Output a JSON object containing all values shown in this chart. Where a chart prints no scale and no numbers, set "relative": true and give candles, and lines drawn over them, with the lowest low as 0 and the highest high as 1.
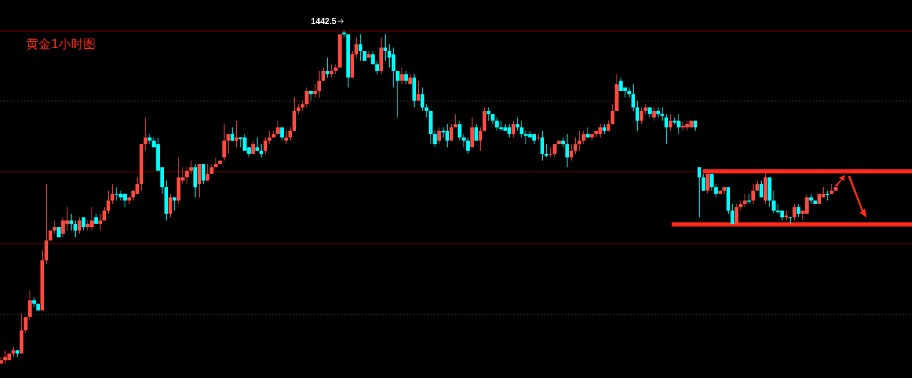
{
  "chart_data": {
    "type": "candlestick",
    "title": "黄金1小时图",
    "relative": true,
    "annotations": [
      "1442.5"
    ],
    "ref_lines": [
      {
        "axis": "y",
        "value": 1,
        "color": "#8a0000"
      },
      {
        "axis": "y",
        "value": 0.576,
        "color": "#8a0000"
      },
      {
        "axis": "y",
        "value": 0.36,
        "color": "#8a0000"
      },
      {
        "axis": "y",
        "value": 0.789,
        "color": "#444444",
        "line_style": "dotted"
      },
      {
        "axis": "y",
        "value": 0.147,
        "color": "#444444",
        "line_style": "dotted"
      },
      {
        "axis": "y",
        "value": 0.578,
        "color": "#ff2a1a"
      },
      {
        "axis": "y",
        "value": 0.418,
        "color": "#ff2a1a"
      }
    ],
    "categories": [
      null,
      null,
      null,
      null,
      null,
      null,
      null,
      null,
      null,
      null,
      null,
      null,
      null,
      null,
      null,
      null,
      null,
      null,
      null,
      null,
      null,
      null,
      null,
      null,
      null,
      null,
      null,
      null,
      null,
      null,
      null,
      null,
      null,
      null,
      null,
      null,
      null,
      null,
      null,
      null,
      null,
      null,
      null,
      null,
      null,
      null,
      null,
      null,
      null,
      null,
      null,
      null,
      null,
      null,
      null,
      null,
      null,
      null,
      null,
      null,
      null,
      null,
      null,
      null,
      null,
      null,
      null,
      null,
      null,
      null,
      null,
      null,
      null,
      null,
      null,
      null,
      null,
      null,
      null,
      null,
      null,
      null,
      null,
      null,
      null,
      null,
      null,
      null,
      null,
      null,
      null,
      null,
      null,
      null,
      null,
      null,
      null,
      null,
      null,
      null,
      null,
      null,
      null,
      null,
      null,
      null,
      null,
      null,
      null,
      null,
      null,
      null,
      null,
      null,
      null,
      null,
      null,
      null,
      null,
      null,
      null,
      null,
      null,
      null,
      null,
      null,
      null,
      null,
      null,
      null,
      null,
      null,
      null,
      null,
      null,
      null,
      null,
      null,
      null,
      null,
      null,
      null,
      null,
      null,
      null,
      null,
      null,
      null,
      null,
      null,
      null,
      null,
      null,
      null,
      null,
      null,
      null,
      null,
      null,
      null,
      null,
      null,
      null,
      null,
      null,
      null,
      null,
      null,
      null,
      null,
      null,
      null,
      null,
      null,
      null,
      null,
      null,
      null,
      null,
      null,
      null,
      null,
      null,
      null,
      null,
      null,
      null,
      null,
      null,
      null,
      null,
      null,
      null,
      null,
      null,
      null,
      null,
      null,
      null,
      null,
      null,
      null,
      null
    ],
    "ohlc": [
      [
        0.0,
        0.02,
        0.0,
        0.01
      ],
      [
        0.01,
        0.04,
        0.0,
        0.02
      ],
      [
        0.01,
        0.03,
        0.01,
        0.03
      ],
      [
        0.03,
        0.05,
        0.02,
        0.04
      ],
      [
        0.04,
        0.04,
        0.02,
        0.03
      ],
      [
        0.03,
        0.15,
        0.03,
        0.1
      ],
      [
        0.1,
        0.14,
        0.09,
        0.14
      ],
      [
        0.14,
        0.22,
        0.13,
        0.19
      ],
      [
        0.19,
        0.2,
        0.17,
        0.18
      ],
      [
        0.18,
        0.18,
        0.16,
        0.16
      ],
      [
        0.16,
        0.34,
        0.16,
        0.31
      ],
      [
        0.31,
        0.54,
        0.3,
        0.37
      ],
      [
        0.37,
        0.4,
        0.37,
        0.4
      ],
      [
        0.4,
        0.43,
        0.39,
        0.41
      ],
      [
        0.41,
        0.41,
        0.38,
        0.38
      ],
      [
        0.39,
        0.44,
        0.38,
        0.43
      ],
      [
        0.42,
        0.47,
        0.4,
        0.43
      ],
      [
        0.43,
        0.45,
        0.4,
        0.42
      ],
      [
        0.42,
        0.43,
        0.38,
        0.4
      ],
      [
        0.4,
        0.44,
        0.39,
        0.43
      ],
      [
        0.44,
        0.44,
        0.4,
        0.41
      ],
      [
        0.41,
        0.43,
        0.4,
        0.42
      ],
      [
        0.41,
        0.47,
        0.4,
        0.43
      ],
      [
        0.44,
        0.45,
        0.42,
        0.42
      ],
      [
        0.42,
        0.45,
        0.4,
        0.43
      ],
      [
        0.43,
        0.47,
        0.43,
        0.46
      ],
      [
        0.46,
        0.52,
        0.45,
        0.49
      ],
      [
        0.49,
        0.54,
        0.48,
        0.51
      ],
      [
        0.51,
        0.53,
        0.49,
        0.508
      ],
      [
        0.51,
        0.52,
        0.49,
        0.5
      ],
      [
        0.51,
        0.51,
        0.47,
        0.49
      ],
      [
        0.49,
        0.5,
        0.48,
        0.5
      ],
      [
        0.5,
        0.52,
        0.49,
        0.52
      ],
      [
        0.51,
        0.56,
        0.51,
        0.54
      ],
      [
        0.54,
        0.66,
        0.52,
        0.66
      ],
      [
        0.66,
        0.74,
        0.64,
        0.68
      ],
      [
        0.68,
        0.69,
        0.66,
        0.67
      ],
      [
        0.67,
        0.68,
        0.65,
        0.65
      ],
      [
        0.66,
        0.68,
        0.58,
        0.58
      ],
      [
        0.59,
        0.59,
        0.51,
        0.53
      ],
      [
        0.53,
        0.55,
        0.43,
        0.45
      ],
      [
        0.45,
        0.51,
        0.44,
        0.5
      ],
      [
        0.5,
        0.5,
        0.46,
        0.49
      ],
      [
        0.49,
        0.62,
        0.48,
        0.56
      ],
      [
        0.55,
        0.59,
        0.54,
        0.56
      ],
      [
        0.56,
        0.59,
        0.54,
        0.58
      ],
      [
        0.58,
        0.61,
        0.57,
        0.59
      ],
      [
        0.59,
        0.6,
        0.5,
        0.53
      ],
      [
        0.54,
        0.6,
        0.5,
        0.6
      ],
      [
        0.6,
        0.6,
        0.54,
        0.55
      ],
      [
        0.55,
        0.6,
        0.55,
        0.57
      ],
      [
        0.57,
        0.6,
        0.57,
        0.59
      ],
      [
        0.59,
        0.62,
        0.59,
        0.6
      ],
      [
        0.6,
        0.61,
        0.6,
        0.61
      ],
      [
        0.62,
        0.72,
        0.61,
        0.67
      ],
      [
        0.67,
        0.69,
        0.63,
        0.69
      ],
      [
        0.69,
        0.71,
        0.67,
        0.67
      ],
      [
        0.67,
        0.73,
        0.65,
        0.68
      ],
      [
        0.68,
        0.68,
        0.65,
        0.675
      ],
      [
        0.68,
        0.69,
        0.64,
        0.64
      ],
      [
        0.65,
        0.65,
        0.62,
        0.63
      ],
      [
        0.63,
        0.67,
        0.63,
        0.66
      ],
      [
        0.65,
        0.68,
        0.64,
        0.64
      ],
      [
        0.64,
        0.66,
        0.62,
        0.63
      ],
      [
        0.64,
        0.68,
        0.63,
        0.67
      ],
      [
        0.67,
        0.7,
        0.66,
        0.68
      ],
      [
        0.68,
        0.7,
        0.68,
        0.69
      ],
      [
        0.69,
        0.73,
        0.69,
        0.71
      ],
      [
        0.71,
        0.71,
        0.67,
        0.68
      ],
      [
        0.67,
        0.7,
        0.66,
        0.68
      ],
      [
        0.68,
        0.71,
        0.67,
        0.7
      ],
      [
        0.7,
        0.8,
        0.7,
        0.76
      ],
      [
        0.76,
        0.78,
        0.75,
        0.77
      ],
      [
        0.77,
        0.79,
        0.76,
        0.78
      ],
      [
        0.78,
        0.83,
        0.77,
        0.82
      ],
      [
        0.82,
        0.82,
        0.79,
        0.81
      ],
      [
        0.81,
        0.84,
        0.8,
        0.82
      ],
      [
        0.82,
        0.88,
        0.8,
        0.85
      ],
      [
        0.85,
        0.89,
        0.85,
        0.88
      ],
      [
        0.88,
        0.92,
        0.86,
        0.87
      ],
      [
        0.87,
        0.9,
        0.86,
        0.88
      ],
      [
        0.88,
        0.9,
        0.87,
        0.89
      ],
      [
        0.89,
        0.99,
        0.89,
        0.99
      ],
      [
        0.995,
        1.0,
        0.98,
        0.99
      ],
      [
        0.99,
        0.99,
        0.83,
        0.86
      ],
      [
        0.86,
        0.94,
        0.86,
        0.93
      ],
      [
        0.93,
        0.98,
        0.92,
        0.96
      ],
      [
        0.96,
        0.99,
        0.91,
        0.94
      ],
      [
        0.94,
        0.94,
        0.91,
        0.91
      ],
      [
        0.92,
        0.94,
        0.92,
        0.93
      ],
      [
        0.93,
        0.94,
        0.9,
        0.9
      ],
      [
        0.9,
        0.91,
        0.87,
        0.88
      ],
      [
        0.88,
        0.98,
        0.87,
        0.95
      ],
      [
        0.95,
        0.99,
        0.91,
        0.94
      ],
      [
        0.94,
        0.96,
        0.89,
        0.92
      ],
      [
        0.93,
        0.95,
        0.83,
        0.88
      ],
      [
        0.88,
        0.88,
        0.74,
        0.85
      ],
      [
        0.85,
        0.89,
        0.84,
        0.87
      ],
      [
        0.87,
        0.88,
        0.84,
        0.85
      ],
      [
        0.84,
        0.87,
        0.84,
        0.86
      ],
      [
        0.86,
        0.87,
        0.77,
        0.79
      ],
      [
        0.79,
        0.85,
        0.79,
        0.81
      ],
      [
        0.81,
        0.83,
        0.76,
        0.77
      ],
      [
        0.77,
        0.78,
        0.74,
        0.76
      ],
      [
        0.76,
        0.76,
        0.66,
        0.69
      ],
      [
        0.69,
        0.7,
        0.65,
        0.66
      ],
      [
        0.67,
        0.71,
        0.66,
        0.7
      ],
      [
        0.7,
        0.71,
        0.68,
        0.695
      ],
      [
        0.7,
        0.72,
        0.65,
        0.67
      ],
      [
        0.67,
        0.72,
        0.67,
        0.71
      ],
      [
        0.71,
        0.75,
        0.71,
        0.72
      ],
      [
        0.72,
        0.73,
        0.67,
        0.68
      ],
      [
        0.68,
        0.69,
        0.65,
        0.67
      ],
      [
        0.67,
        0.68,
        0.63,
        0.64
      ],
      [
        0.65,
        0.74,
        0.65,
        0.71
      ],
      [
        0.71,
        0.72,
        0.67,
        0.67
      ],
      [
        0.67,
        0.71,
        0.64,
        0.7
      ],
      [
        0.7,
        0.77,
        0.7,
        0.76
      ],
      [
        0.76,
        0.77,
        0.73,
        0.75
      ],
      [
        0.75,
        0.75,
        0.72,
        0.73
      ],
      [
        0.73,
        0.74,
        0.7,
        0.71
      ],
      [
        0.71,
        0.73,
        0.7,
        0.705
      ],
      [
        0.71,
        0.72,
        0.7,
        0.7
      ],
      [
        0.71,
        0.72,
        0.68,
        0.69
      ],
      [
        0.69,
        0.73,
        0.68,
        0.72
      ],
      [
        0.72,
        0.74,
        0.7,
        0.71
      ],
      [
        0.71,
        0.73,
        0.68,
        0.69
      ],
      [
        0.69,
        0.7,
        0.66,
        0.685
      ],
      [
        0.69,
        0.7,
        0.68,
        0.68
      ],
      [
        0.69,
        0.69,
        0.66,
        0.67
      ],
      [
        0.68,
        0.69,
        0.67,
        0.68
      ],
      [
        0.68,
        0.7,
        0.61,
        0.63
      ],
      [
        0.63,
        0.66,
        0.62,
        0.625
      ],
      [
        0.63,
        0.65,
        0.62,
        0.63
      ],
      [
        0.63,
        0.66,
        0.62,
        0.66
      ],
      [
        0.66,
        0.67,
        0.66,
        0.67
      ],
      [
        0.67,
        0.68,
        0.65,
        0.66
      ],
      [
        0.66,
        0.69,
        0.59,
        0.62
      ],
      [
        0.62,
        0.66,
        0.61,
        0.64
      ],
      [
        0.64,
        0.68,
        0.63,
        0.66
      ],
      [
        0.66,
        0.7,
        0.64,
        0.67
      ],
      [
        0.67,
        0.7,
        0.66,
        0.69
      ],
      [
        0.69,
        0.71,
        0.68,
        0.68
      ],
      [
        0.68,
        0.69,
        0.67,
        0.69
      ],
      [
        0.69,
        0.7,
        0.68,
        0.7
      ],
      [
        0.69,
        0.72,
        0.68,
        0.71
      ],
      [
        0.71,
        0.72,
        0.69,
        0.7
      ],
      [
        0.7,
        0.73,
        0.7,
        0.72
      ],
      [
        0.72,
        0.78,
        0.72,
        0.76
      ],
      [
        0.76,
        0.87,
        0.76,
        0.84
      ],
      [
        0.85,
        0.86,
        0.82,
        0.82
      ],
      [
        0.83,
        0.83,
        0.8,
        0.82
      ],
      [
        0.82,
        0.83,
        0.8,
        0.81
      ],
      [
        0.81,
        0.84,
        0.76,
        0.77
      ],
      [
        0.77,
        0.79,
        0.7,
        0.73
      ],
      [
        0.73,
        0.77,
        0.72,
        0.76
      ],
      [
        0.76,
        0.78,
        0.75,
        0.77
      ],
      [
        0.77,
        0.77,
        0.74,
        0.75
      ],
      [
        0.74,
        0.77,
        0.73,
        0.76
      ],
      [
        0.76,
        0.77,
        0.74,
        0.75
      ],
      [
        0.75,
        0.77,
        0.73,
        0.745
      ],
      [
        0.74,
        0.75,
        0.66,
        0.71
      ],
      [
        0.71,
        0.75,
        0.7,
        0.73
      ],
      [
        0.73,
        0.74,
        0.72,
        0.725
      ],
      [
        0.73,
        0.75,
        0.69,
        0.71
      ],
      [
        0.71,
        0.73,
        0.7,
        0.715
      ],
      [
        0.71,
        0.73,
        0.7,
        0.72
      ],
      [
        0.71,
        0.73,
        0.71,
        0.73
      ],
      [
        0.73,
        0.73,
        0.7,
        0.71
      ],
      [
        0.59,
        0.59,
        0.44,
        0.56
      ],
      [
        0.56,
        0.57,
        0.52,
        0.52
      ],
      [
        0.52,
        0.57,
        0.51,
        0.57
      ],
      [
        0.57,
        0.57,
        0.52,
        0.53
      ],
      [
        0.53,
        0.54,
        0.5,
        0.51
      ],
      [
        0.51,
        0.52,
        0.51,
        0.52
      ],
      [
        0.52,
        0.53,
        0.51,
        0.53
      ],
      [
        0.53,
        0.53,
        0.45,
        0.46
      ],
      [
        0.46,
        0.48,
        0.42,
        0.42
      ],
      [
        0.42,
        0.48,
        0.42,
        0.47
      ],
      [
        0.47,
        0.49,
        0.46,
        0.48
      ],
      [
        0.48,
        0.51,
        0.47,
        0.49
      ],
      [
        0.49,
        0.51,
        0.48,
        0.487
      ],
      [
        0.49,
        0.54,
        0.48,
        0.52
      ],
      [
        0.52,
        0.55,
        0.52,
        0.54
      ],
      [
        0.54,
        0.55,
        0.5,
        0.5
      ],
      [
        0.49,
        0.57,
        0.48,
        0.56
      ],
      [
        0.56,
        0.56,
        0.47,
        0.49
      ],
      [
        0.49,
        0.52,
        0.45,
        0.46
      ],
      [
        0.46,
        0.48,
        0.45,
        0.455
      ],
      [
        0.46,
        0.46,
        0.43,
        0.44
      ],
      [
        0.44,
        0.46,
        0.43,
        0.445
      ],
      [
        0.44,
        0.44,
        0.42,
        0.437
      ],
      [
        0.44,
        0.48,
        0.43,
        0.47
      ],
      [
        0.47,
        0.48,
        0.44,
        0.45
      ],
      [
        0.45,
        0.46,
        0.43,
        0.46
      ],
      [
        0.45,
        0.51,
        0.45,
        0.5
      ],
      [
        0.5,
        0.51,
        0.48,
        0.49
      ],
      [
        0.49,
        0.49,
        0.48,
        0.48
      ],
      [
        0.48,
        0.51,
        0.48,
        0.51
      ],
      [
        0.5,
        0.53,
        0.5,
        0.51
      ],
      [
        0.51,
        0.52,
        0.49,
        0.507
      ],
      [
        0.51,
        0.54,
        0.51,
        0.52
      ],
      [
        0.52,
        0.54,
        0.52,
        0.53
      ]
    ]
  }
}
